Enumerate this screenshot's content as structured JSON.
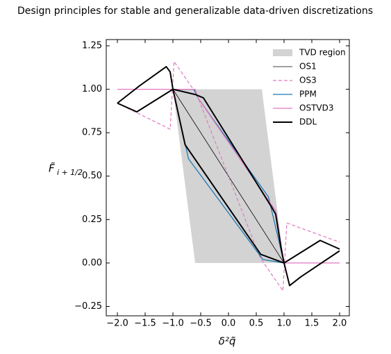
{
  "chart_data": {
    "type": "line",
    "title": "Design principles for stable and generalizable data-driven discretizations",
    "xlabel": "δ²q̃",
    "ylabel": "F̃",
    "ylabel_sub": "i + 1/2",
    "xlim": [
      -2.2,
      2.175
    ],
    "ylim": [
      -0.304,
      1.286
    ],
    "xticks": [
      {
        "value": -2.0,
        "label": "−2.0"
      },
      {
        "value": -1.5,
        "label": "−1.5"
      },
      {
        "value": -1.0,
        "label": "−1.0"
      },
      {
        "value": -0.5,
        "label": "−0.5"
      },
      {
        "value": 0.0,
        "label": "0.0"
      },
      {
        "value": 0.5,
        "label": "0.5"
      },
      {
        "value": 1.0,
        "label": "1.0"
      },
      {
        "value": 1.5,
        "label": "1.5"
      },
      {
        "value": 2.0,
        "label": "2.0"
      }
    ],
    "yticks": [
      {
        "value": -0.25,
        "label": "−0.25"
      },
      {
        "value": 0.0,
        "label": "0.00"
      },
      {
        "value": 0.25,
        "label": "0.25"
      },
      {
        "value": 0.5,
        "label": "0.50"
      },
      {
        "value": 0.75,
        "label": "0.75"
      },
      {
        "value": 1.0,
        "label": "1.00"
      },
      {
        "value": 1.25,
        "label": "1.25"
      }
    ],
    "legend": "upper right",
    "series": [
      {
        "name": "TVD region",
        "color": "#d3d3d3",
        "style": "fill",
        "x": [
          -1,
          0.6,
          1,
          -0.6
        ],
        "values": [
          1,
          1,
          0,
          0
        ]
      },
      {
        "name": "OS1",
        "color": "#000000",
        "style": "solid",
        "width": 0.8,
        "x": [
          -1,
          1
        ],
        "values": [
          1,
          0
        ]
      },
      {
        "name": "OS3",
        "color": "#e377c2",
        "style": "dashed",
        "width": 1.2,
        "x": [
          -2,
          -1.05,
          -0.98,
          -0.57,
          0.57,
          0.98,
          1.05,
          2
        ],
        "values": [
          0.92,
          0.77,
          1.16,
          0.97,
          0.03,
          -0.16,
          0.23,
          0.12
        ]
      },
      {
        "name": "PPM",
        "color": "#1f77b4",
        "style": "solid",
        "width": 1.3,
        "x": [
          -1,
          -0.62,
          -0.55,
          0.72,
          1,
          0.62,
          -0.72,
          -1
        ],
        "values": [
          1,
          1,
          0.95,
          0.38,
          0,
          0.02,
          0.6,
          1
        ]
      },
      {
        "name": "OSTVD3",
        "color": "#e377c2",
        "style": "solid",
        "width": 1.3,
        "x": [
          -2,
          -1,
          -0.6,
          -0.55,
          0.85,
          1,
          2
        ],
        "values": [
          1,
          1,
          1,
          0.95,
          0.3,
          0,
          0
        ]
      },
      {
        "name": "DDL",
        "color": "#000000",
        "style": "solid",
        "width": 2,
        "x": [
          -2,
          -1.6,
          -1.12,
          -1.05,
          -1,
          -0.6,
          -0.45,
          0.78,
          0.85,
          0.95,
          1,
          1.1,
          1.3,
          2,
          null,
          -2,
          -1.65,
          -1,
          -0.78,
          0.58,
          1,
          1.65,
          2
        ],
        "values": [
          0.92,
          1.02,
          1.13,
          1.1,
          1,
          0.97,
          0.95,
          0.32,
          0.28,
          0.08,
          0,
          -0.13,
          -0.08,
          0.07,
          null,
          0.92,
          0.87,
          1,
          0.68,
          0.05,
          0,
          0.13,
          0.08
        ]
      }
    ]
  }
}
